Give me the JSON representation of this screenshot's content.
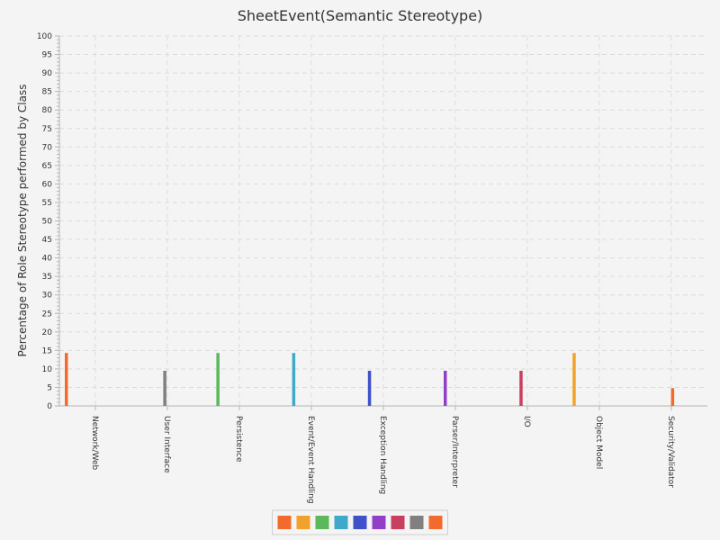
{
  "chart_data": {
    "type": "bar",
    "title": "SheetEvent(Semantic Stereotype)",
    "xlabel": "",
    "ylabel": "Percentage of Role Stereotype performed by Class",
    "ylim": [
      0,
      100
    ],
    "yticks": [
      0,
      5,
      10,
      15,
      20,
      25,
      30,
      35,
      40,
      45,
      50,
      55,
      60,
      65,
      70,
      75,
      80,
      85,
      90,
      95,
      100
    ],
    "grid": true,
    "legend": "bottom",
    "categories": [
      "Network/Web",
      "User Interface",
      "Persistence",
      "Event/Event Handling",
      "Exception Handling",
      "Parser/Interpreter",
      "I/O",
      "Object Model",
      "Security/Validator"
    ],
    "series": [
      {
        "color": "#f26b2c",
        "values": [
          14.3,
          null,
          null,
          null,
          null,
          null,
          null,
          null,
          null
        ]
      },
      {
        "color": "#f2a12c",
        "values": [
          null,
          null,
          null,
          null,
          null,
          null,
          null,
          14.3,
          null
        ]
      },
      {
        "color": "#5cb85c",
        "values": [
          null,
          null,
          14.3,
          null,
          null,
          null,
          null,
          null,
          null
        ]
      },
      {
        "color": "#3fa9c9",
        "values": [
          null,
          null,
          null,
          14.3,
          null,
          null,
          null,
          null,
          null
        ]
      },
      {
        "color": "#3f51c9",
        "values": [
          null,
          null,
          null,
          null,
          9.5,
          null,
          null,
          null,
          null
        ]
      },
      {
        "color": "#913fc9",
        "values": [
          null,
          null,
          null,
          null,
          null,
          9.5,
          null,
          null,
          null
        ]
      },
      {
        "color": "#c93f5f",
        "values": [
          null,
          null,
          null,
          null,
          null,
          null,
          9.5,
          null,
          null
        ]
      },
      {
        "color": "#808080",
        "values": [
          null,
          9.5,
          null,
          null,
          null,
          null,
          null,
          null,
          null
        ]
      },
      {
        "color": "#f26b2c",
        "values": [
          null,
          null,
          null,
          null,
          null,
          null,
          null,
          null,
          4.8
        ]
      }
    ]
  }
}
